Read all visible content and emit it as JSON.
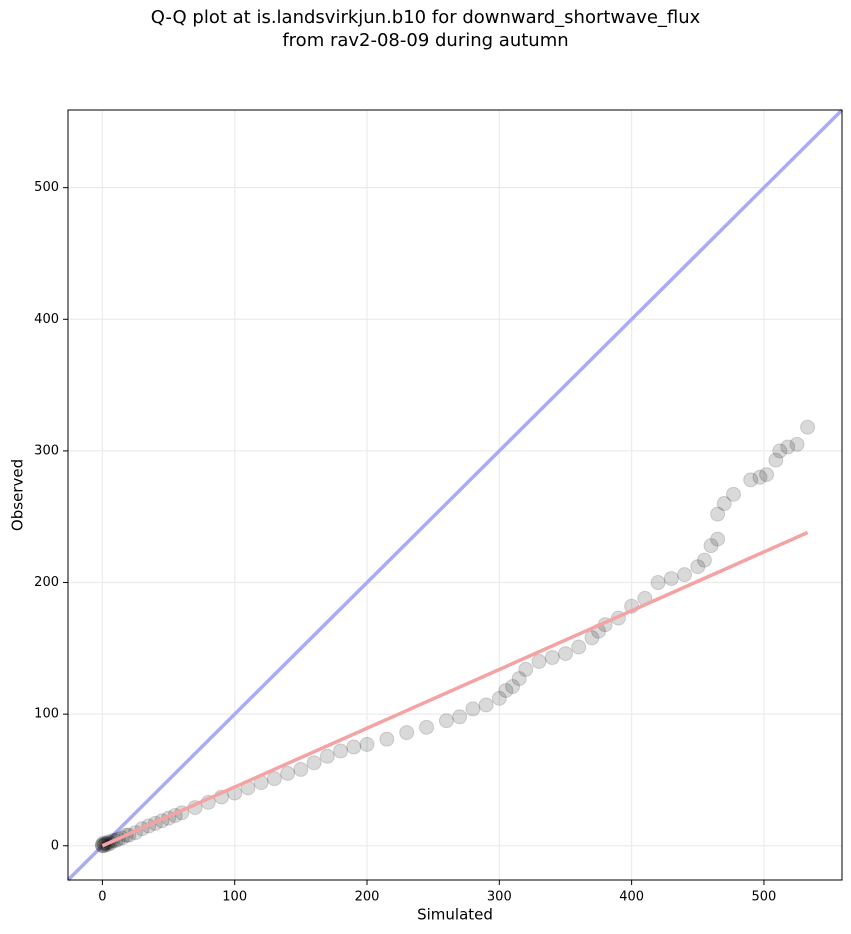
{
  "chart_data": {
    "type": "scatter",
    "title": "Q-Q plot at is.landsvirkjun.b10 for downward_shortwave_flux\nfrom rav2-08-09 during autumn",
    "x_label": "Simulated",
    "y_label": "Observed",
    "xlim": [
      -26,
      559
    ],
    "ylim": [
      -26,
      559
    ],
    "xticks": [
      0,
      100,
      200,
      300,
      400,
      500
    ],
    "yticks": [
      0,
      100,
      200,
      300,
      400,
      500
    ],
    "grid": true,
    "series": [
      {
        "color": "#000000",
        "alpha": 0.15,
        "x": [
          0,
          0,
          1,
          1,
          2,
          3,
          4,
          5,
          6,
          8,
          10,
          12,
          15,
          18,
          20,
          25,
          30,
          35,
          40,
          45,
          50,
          55,
          60,
          70,
          80,
          90,
          100,
          110,
          120,
          130,
          140,
          150,
          160,
          170,
          180,
          190,
          200,
          215,
          230,
          245,
          260,
          270,
          280,
          290,
          300,
          305,
          310,
          315,
          320,
          330,
          340,
          350,
          360,
          370,
          375,
          380,
          390,
          400,
          410,
          420,
          430,
          440,
          450,
          455,
          460,
          465,
          465,
          470,
          477,
          490,
          497,
          502,
          509,
          512,
          518,
          525,
          533
        ],
        "y": [
          0,
          1,
          0,
          2,
          1,
          2,
          1,
          3,
          2,
          4,
          4,
          5,
          6,
          8,
          8,
          10,
          13,
          15,
          17,
          19,
          21,
          23,
          25,
          29,
          33,
          37,
          40,
          44,
          48,
          51,
          55,
          58,
          63,
          68,
          72,
          75,
          77,
          81,
          86,
          90,
          95,
          98,
          104,
          107,
          112,
          118,
          121,
          127,
          134,
          140,
          143,
          146,
          151,
          158,
          163,
          168,
          173,
          182,
          188,
          200,
          203,
          206,
          212,
          217,
          228,
          233,
          252,
          260,
          267,
          278,
          280,
          282,
          293,
          300,
          303,
          305,
          318
        ]
      }
    ],
    "fit_line": {
      "color": "#f4a3a3",
      "x": [
        0,
        533
      ],
      "y": [
        0,
        238
      ]
    },
    "reference_line": {
      "color": "#aaaaf6"
    }
  }
}
